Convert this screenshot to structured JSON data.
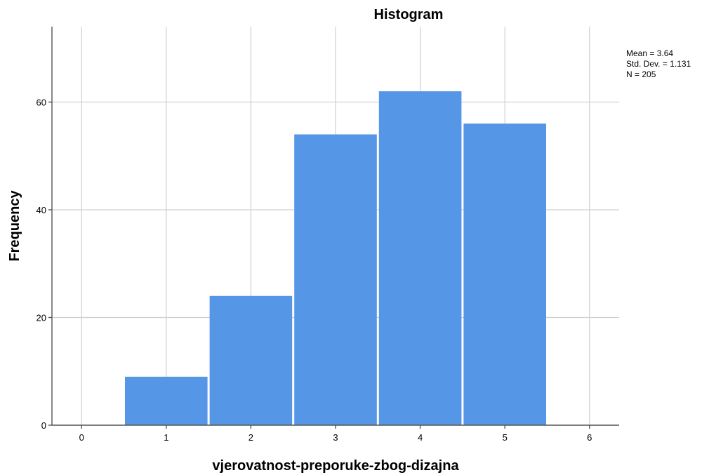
{
  "chart_data": {
    "type": "bar",
    "title": "Histogram",
    "xlabel": "vjerovatnost-preporuke-zbog-dizajna",
    "ylabel": "Frequency",
    "xlim": [
      -0.35,
      6.35
    ],
    "ylim": [
      0,
      74
    ],
    "x_ticks": [
      0,
      1,
      2,
      3,
      4,
      5,
      6
    ],
    "y_ticks": [
      0,
      20,
      40,
      60
    ],
    "grid": true,
    "bins": [
      {
        "x": 1,
        "value": 9
      },
      {
        "x": 2,
        "value": 24
      },
      {
        "x": 3,
        "value": 54
      },
      {
        "x": 4,
        "value": 62
      },
      {
        "x": 5,
        "value": 56
      }
    ],
    "bar_color": "#5596e6",
    "stats": {
      "mean": "Mean = 3.64",
      "std": "Std. Dev. = 1.131",
      "n": "N = 205"
    }
  }
}
